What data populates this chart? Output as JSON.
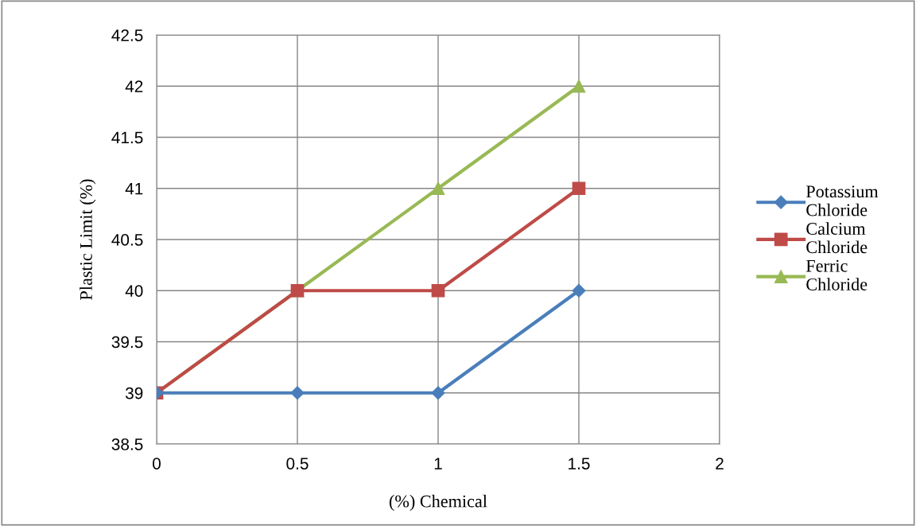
{
  "chart_data": {
    "type": "line",
    "xlabel": "(%) Chemical",
    "ylabel": "Plastic Limit (%)",
    "x": [
      0,
      0.5,
      1,
      1.5
    ],
    "series": [
      {
        "name": "Potassium Chloride",
        "color": "#4a7ebb",
        "marker": "diamond",
        "values": [
          39,
          39,
          39,
          40
        ]
      },
      {
        "name": "Calcium Chloride",
        "color": "#be4b48",
        "marker": "square",
        "values": [
          39,
          40,
          40,
          41
        ]
      },
      {
        "name": "Ferric Chloride",
        "color": "#98b954",
        "marker": "triangle",
        "values": [
          39,
          40,
          41,
          42
        ]
      }
    ],
    "xlim": [
      0,
      2
    ],
    "xticks": [
      0,
      0.5,
      1,
      1.5,
      2
    ],
    "ylim": [
      38.5,
      42.5
    ],
    "yticks": [
      38.5,
      39,
      39.5,
      40,
      40.5,
      41,
      41.5,
      42,
      42.5
    ],
    "grid": true,
    "legend": "right",
    "line_style": "solid"
  }
}
